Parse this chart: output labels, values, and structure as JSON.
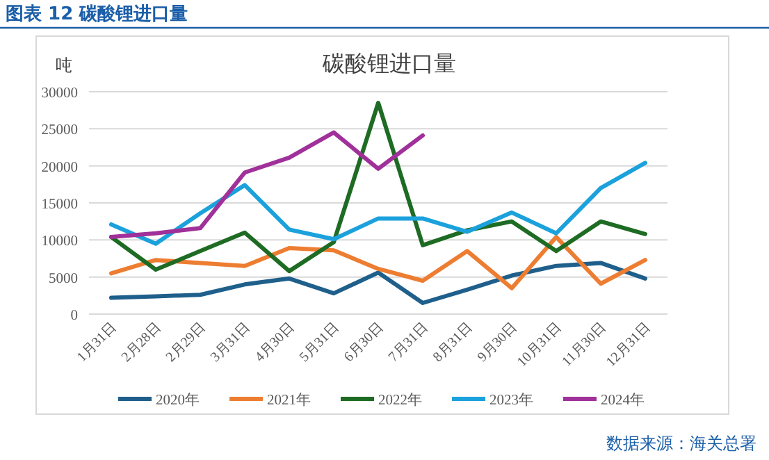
{
  "chart_data": {
    "type": "line",
    "title": "碳酸锂进口量",
    "ylabel": "吨",
    "annotations": [
      "图表 12 碳酸锂进口量",
      "数据来源：海关总署"
    ],
    "categories": [
      "1月31日",
      "2月28日",
      "2月29日",
      "3月31日",
      "4月30日",
      "5月31日",
      "6月30日",
      "7月31日",
      "8月31日",
      "9月30日",
      "10月31日",
      "11月30日",
      "12月31日"
    ],
    "ylim": [
      0,
      30000
    ],
    "yticks": [
      0,
      5000,
      10000,
      15000,
      20000,
      25000,
      30000
    ],
    "grid": "y",
    "legend": "bottom",
    "marker": "none",
    "line_style": "solid",
    "series": [
      {
        "name": "2020年",
        "color": "#1f5f8b",
        "values": [
          2200,
          2400,
          2600,
          4000,
          4800,
          2800,
          5600,
          1500,
          3300,
          5200,
          6500,
          6900,
          4800
        ]
      },
      {
        "name": "2021年",
        "color": "#ed7d31",
        "values": [
          5500,
          7300,
          6900,
          6500,
          8900,
          8600,
          6100,
          4500,
          8500,
          3500,
          10400,
          4100,
          7300
        ]
      },
      {
        "name": "2022年",
        "color": "#1e6b24",
        "values": [
          10400,
          6000,
          8500,
          11000,
          5800,
          9700,
          28500,
          9300,
          11300,
          12500,
          8500,
          12500,
          10800
        ]
      },
      {
        "name": "2023年",
        "color": "#1ba1dc",
        "values": [
          12100,
          9500,
          13600,
          17400,
          11400,
          10100,
          12900,
          12900,
          11100,
          13700,
          10900,
          17000,
          20400
        ]
      },
      {
        "name": "2024年",
        "color": "#a0309a",
        "values": [
          10400,
          10900,
          11600,
          19100,
          21100,
          24500,
          19600,
          24100,
          null,
          null,
          null,
          null,
          null
        ]
      }
    ]
  }
}
